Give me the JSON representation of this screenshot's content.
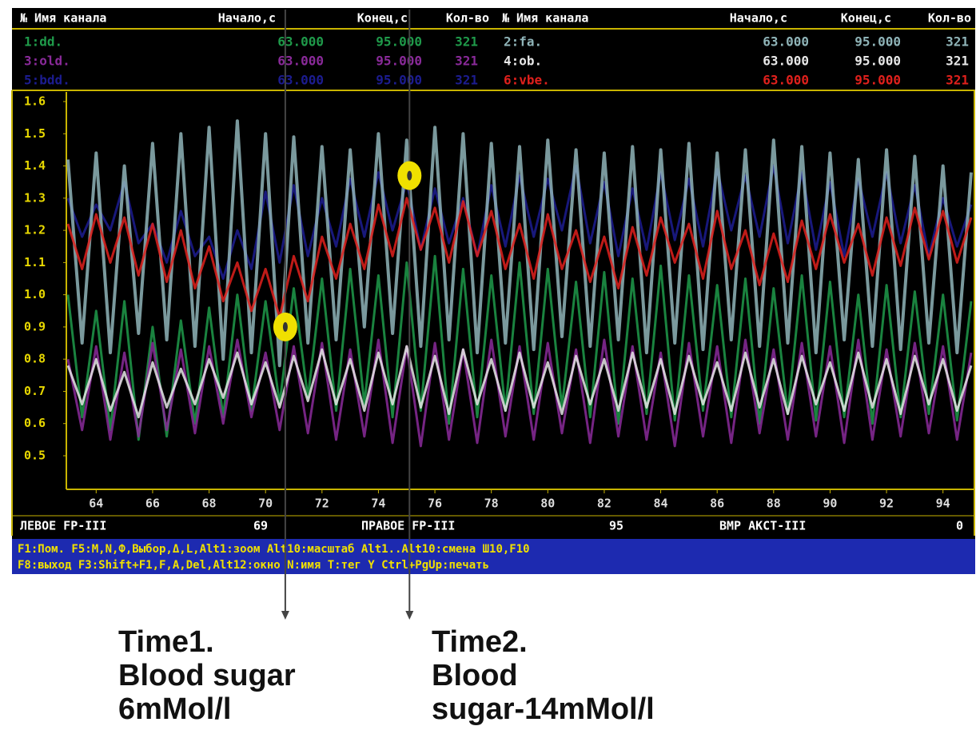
{
  "header": {
    "columns": [
      "№ Имя канала",
      "Начало,с",
      "Конец,с",
      "Кол-во"
    ]
  },
  "chart_data": {
    "type": "line",
    "x": [
      63,
      63.5,
      64,
      64.5,
      65,
      65.5,
      66,
      66.5,
      67,
      67.5,
      68,
      68.5,
      69,
      69.5,
      70,
      70.5,
      71,
      71.5,
      72,
      72.5,
      73,
      73.5,
      74,
      74.5,
      75,
      75.5,
      76,
      76.5,
      77,
      77.5,
      78,
      78.5,
      79,
      79.5,
      80,
      80.5,
      81,
      81.5,
      82,
      82.5,
      83,
      83.5,
      84,
      84.5,
      85,
      85.5,
      86,
      86.5,
      87,
      87.5,
      88,
      88.5,
      89,
      89.5,
      90,
      90.5,
      91,
      91.5,
      92,
      92.5,
      93,
      93.5,
      94,
      94.5,
      95
    ],
    "xlim": [
      63,
      95
    ],
    "xticks": [
      64,
      66,
      68,
      70,
      72,
      74,
      76,
      78,
      80,
      82,
      84,
      86,
      88,
      90,
      92,
      94
    ],
    "ylim": [
      0.4,
      1.6
    ],
    "yticks": [
      1.6,
      1.5,
      1.4,
      1.3,
      1.2,
      1.1,
      {
        "value": 1,
        "label": "1.0"
      },
      0.9,
      0.8,
      0.7,
      0.6,
      0.5
    ],
    "series": [
      {
        "name": "1:dd.",
        "color": "#1f9a4a",
        "from": "63.000",
        "to": "95.000",
        "count": 321,
        "values": [
          1.0,
          0.62,
          0.95,
          0.58,
          0.98,
          0.55,
          0.9,
          0.56,
          0.92,
          0.6,
          0.96,
          0.62,
          1.0,
          0.64,
          0.98,
          0.66,
          1.02,
          0.68,
          1.05,
          0.64,
          1.08,
          0.66,
          1.06,
          0.62,
          1.1,
          0.64,
          1.12,
          0.6,
          1.08,
          0.62,
          1.06,
          0.64,
          1.1,
          0.63,
          1.08,
          0.65,
          1.04,
          0.62,
          1.07,
          0.6,
          1.05,
          0.63,
          1.09,
          0.61,
          1.06,
          0.64,
          1.03,
          0.62,
          1.05,
          0.6,
          1.02,
          0.63,
          1.06,
          0.61,
          1.04,
          0.62,
          1.0,
          0.6,
          1.03,
          0.62,
          1.01,
          0.63,
          1.0,
          0.61,
          0.98
        ]
      },
      {
        "name": "2:fa.",
        "color": "#8fb4b8",
        "from": "63.000",
        "to": "95.000",
        "count": 321,
        "values": [
          1.42,
          0.85,
          1.44,
          0.82,
          1.4,
          0.88,
          1.47,
          0.86,
          1.5,
          0.84,
          1.52,
          0.8,
          1.54,
          0.82,
          1.5,
          0.78,
          1.49,
          0.85,
          1.46,
          0.86,
          1.45,
          0.9,
          1.5,
          0.88,
          1.48,
          0.84,
          1.52,
          0.86,
          1.5,
          0.82,
          1.47,
          0.85,
          1.46,
          0.83,
          1.48,
          0.87,
          1.45,
          0.84,
          1.44,
          0.86,
          1.46,
          0.82,
          1.45,
          0.85,
          1.47,
          0.83,
          1.44,
          0.86,
          1.45,
          0.84,
          1.48,
          0.85,
          1.46,
          0.82,
          1.44,
          0.86,
          1.42,
          0.84,
          1.45,
          0.83,
          1.43,
          0.85,
          1.4,
          0.82,
          1.38
        ]
      },
      {
        "name": "3:old.",
        "color": "#8a2a9a",
        "from": "63.000",
        "to": "95.000",
        "count": 321,
        "values": [
          0.8,
          0.58,
          0.84,
          0.55,
          0.82,
          0.56,
          0.85,
          0.58,
          0.83,
          0.57,
          0.84,
          0.6,
          0.86,
          0.62,
          0.82,
          0.58,
          0.84,
          0.57,
          0.85,
          0.55,
          0.83,
          0.56,
          0.86,
          0.54,
          0.84,
          0.53,
          0.85,
          0.55,
          0.83,
          0.54,
          0.86,
          0.56,
          0.84,
          0.55,
          0.85,
          0.57,
          0.83,
          0.54,
          0.86,
          0.56,
          0.84,
          0.55,
          0.82,
          0.53,
          0.85,
          0.56,
          0.84,
          0.54,
          0.86,
          0.57,
          0.83,
          0.55,
          0.85,
          0.56,
          0.84,
          0.54,
          0.86,
          0.55,
          0.83,
          0.56,
          0.85,
          0.57,
          0.84,
          0.55,
          0.82
        ]
      },
      {
        "name": "4:ob.",
        "color": "#e8e8e8",
        "from": "63.000",
        "to": "95.000",
        "count": 321,
        "values": [
          0.78,
          0.66,
          0.8,
          0.64,
          0.76,
          0.62,
          0.79,
          0.65,
          0.77,
          0.66,
          0.8,
          0.68,
          0.82,
          0.66,
          0.79,
          0.65,
          0.81,
          0.67,
          0.83,
          0.66,
          0.8,
          0.64,
          0.82,
          0.66,
          0.84,
          0.65,
          0.81,
          0.63,
          0.83,
          0.66,
          0.8,
          0.64,
          0.82,
          0.65,
          0.79,
          0.63,
          0.81,
          0.66,
          0.8,
          0.64,
          0.82,
          0.65,
          0.8,
          0.63,
          0.81,
          0.66,
          0.79,
          0.64,
          0.82,
          0.65,
          0.8,
          0.63,
          0.81,
          0.66,
          0.79,
          0.64,
          0.82,
          0.65,
          0.8,
          0.63,
          0.81,
          0.66,
          0.8,
          0.64,
          0.78
        ]
      },
      {
        "name": "5:bdd.",
        "color": "#1c1c90",
        "from": "63.000",
        "to": "95.000",
        "count": 321,
        "values": [
          1.3,
          1.18,
          1.28,
          1.2,
          1.35,
          1.16,
          1.22,
          1.1,
          1.26,
          1.12,
          1.18,
          1.05,
          1.2,
          1.08,
          1.32,
          1.1,
          1.34,
          1.12,
          1.3,
          1.15,
          1.36,
          1.18,
          1.38,
          1.2,
          1.35,
          1.14,
          1.33,
          1.16,
          1.3,
          1.12,
          1.34,
          1.15,
          1.37,
          1.18,
          1.36,
          1.2,
          1.4,
          1.16,
          1.35,
          1.12,
          1.33,
          1.14,
          1.38,
          1.17,
          1.36,
          1.15,
          1.39,
          1.2,
          1.37,
          1.18,
          1.4,
          1.16,
          1.38,
          1.14,
          1.35,
          1.12,
          1.36,
          1.18,
          1.38,
          1.16,
          1.34,
          1.12,
          1.3,
          1.15,
          1.28
        ]
      },
      {
        "name": "6:vbe.",
        "color": "#e0201c",
        "from": "63.000",
        "to": "95.000",
        "count": 321,
        "values": [
          1.22,
          1.08,
          1.25,
          1.1,
          1.24,
          1.06,
          1.22,
          1.04,
          1.2,
          1.02,
          1.15,
          0.98,
          1.1,
          0.95,
          1.08,
          0.93,
          1.12,
          0.98,
          1.18,
          1.05,
          1.22,
          1.08,
          1.28,
          1.12,
          1.3,
          1.14,
          1.27,
          1.1,
          1.29,
          1.12,
          1.26,
          1.08,
          1.22,
          1.05,
          1.25,
          1.08,
          1.2,
          1.04,
          1.18,
          1.02,
          1.21,
          1.06,
          1.24,
          1.1,
          1.22,
          1.05,
          1.26,
          1.08,
          1.2,
          1.03,
          1.19,
          1.04,
          1.23,
          1.08,
          1.25,
          1.1,
          1.22,
          1.06,
          1.24,
          1.09,
          1.27,
          1.11,
          1.26,
          1.1,
          1.24
        ]
      }
    ],
    "markers": [
      {
        "x": 70.7,
        "y": 0.9
      },
      {
        "x": 75.1,
        "y": 1.37
      }
    ]
  },
  "footer": {
    "items": [
      "ЛЕВОЕ FP-III",
      "69",
      "ПРАВОЕ FP-III",
      "95",
      "ВМР АКСТ-III",
      "0"
    ]
  },
  "status_bar": {
    "lines": [
      "F1:Пом.  F5:M,N,Ф,Выбор,Δ,L,Alt1:зоом  Alt10:масштаб  Alt1..Alt10:смена  Ш10,F10",
      "F8:выход  F3:Shift+F1,F,A,Del,Alt12:окно  N:имя  T:тег  Y  Ctrl+PgUp:печать"
    ]
  },
  "annotations": [
    {
      "lines": [
        "Time1.",
        "Blood sugar",
        "6mMol/l"
      ]
    },
    {
      "lines": [
        "Time2.",
        "Blood",
        "sugar-14mMol/l"
      ]
    }
  ]
}
